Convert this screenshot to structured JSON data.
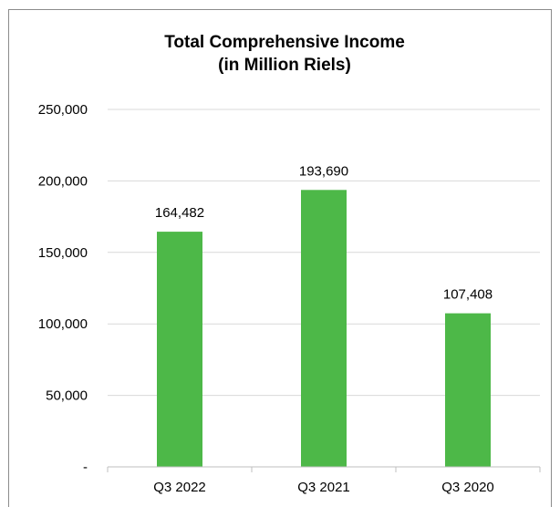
{
  "chart_data": {
    "type": "bar",
    "title": [
      "Total Comprehensive Income",
      "(in Million Riels)"
    ],
    "categories": [
      "Q3 2022",
      "Q3 2021",
      "Q3 2020"
    ],
    "values": [
      164482,
      193690,
      107408
    ],
    "data_labels": [
      "164,482",
      "193,690",
      "107,408"
    ],
    "ylim": [
      0,
      250000
    ],
    "yticks": [
      0,
      50000,
      100000,
      150000,
      200000,
      250000
    ],
    "ytick_labels": [
      "-",
      "50,000",
      "100,000",
      "150,000",
      "200,000",
      "250,000"
    ],
    "xlabel": "",
    "ylabel": "",
    "grid": true,
    "legend": "none",
    "bar_color": "#4db848",
    "grid_color": "#d9d9d9",
    "axis_color": "#bfbfbf"
  }
}
